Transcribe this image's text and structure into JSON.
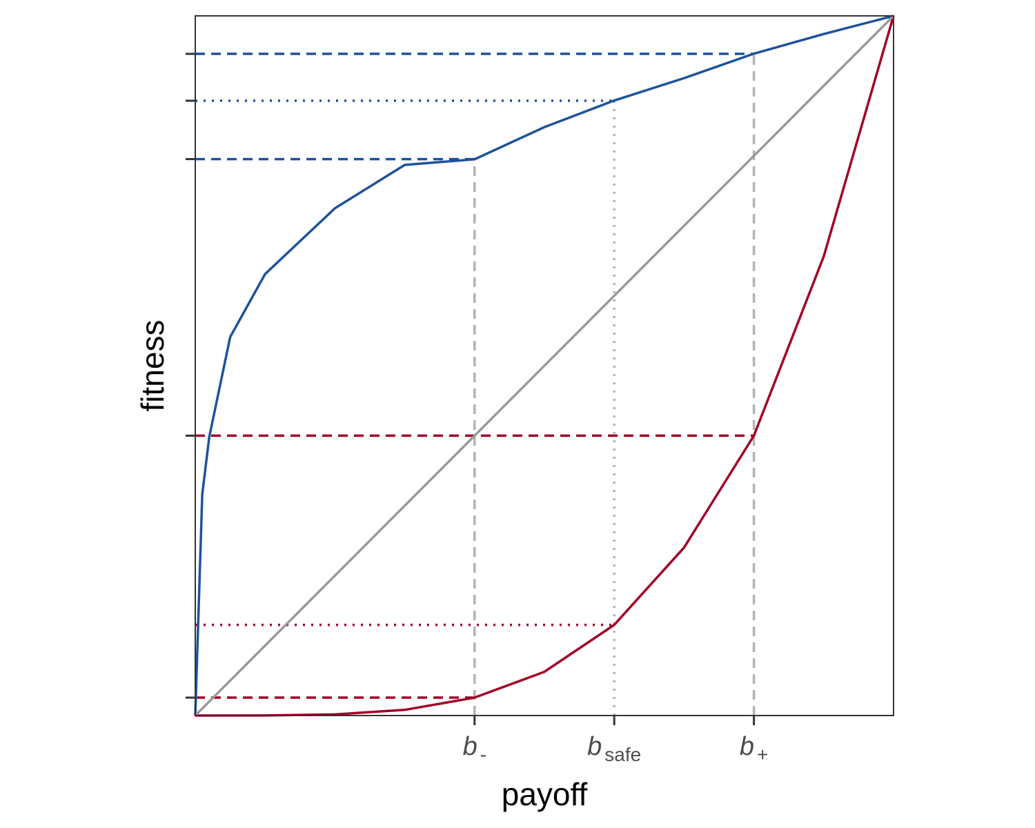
{
  "chart_data": {
    "type": "line",
    "xlabel": "payoff",
    "ylabel": "fitness",
    "xlim": [
      0,
      1
    ],
    "ylim": [
      0,
      1
    ],
    "grid": false,
    "x_ticks": [
      {
        "x": 0.4,
        "main": "b",
        "sub": "-"
      },
      {
        "x": 0.6,
        "main": "b",
        "sub": "safe"
      },
      {
        "x": 0.8,
        "main": "b",
        "sub": "+"
      }
    ],
    "y_ticks": [
      0.0256,
      0.4,
      0.7953,
      0.8787,
      0.9457
    ],
    "series": [
      {
        "x": [
          0,
          0.01,
          0.02,
          0.05,
          0.1,
          0.2,
          0.3,
          0.4,
          0.5,
          0.6,
          0.7,
          0.8,
          0.9,
          1.0
        ],
        "y": [
          0,
          0.316,
          0.398,
          0.541,
          0.631,
          0.725,
          0.787,
          0.795,
          0.841,
          0.879,
          0.911,
          0.946,
          0.974,
          1.0
        ],
        "color": "#1d529b"
      },
      {
        "x": [
          0,
          0.1,
          0.2,
          0.3,
          0.4,
          0.5,
          0.6,
          0.7,
          0.8,
          0.9,
          1.0
        ],
        "y": [
          0,
          0.0001,
          0.0016,
          0.0081,
          0.0256,
          0.0625,
          0.1296,
          0.2401,
          0.4,
          0.6561,
          1.0
        ],
        "color": "#a10026"
      },
      {
        "x": [
          0,
          1
        ],
        "y": [
          0,
          1
        ],
        "color": "#999999"
      }
    ],
    "guides": [
      {
        "axis": "h",
        "y": 0.9457,
        "x_to": 0.8,
        "style": "dashed",
        "color": "#1d529b"
      },
      {
        "axis": "h",
        "y": 0.8787,
        "x_to": 0.6,
        "style": "dotted",
        "color": "#1d529b"
      },
      {
        "axis": "h",
        "y": 0.7953,
        "x_to": 0.4,
        "style": "dashed",
        "color": "#1d529b"
      },
      {
        "axis": "h",
        "y": 0.4,
        "x_to": 0.8,
        "style": "dashed",
        "color": "#a10026"
      },
      {
        "axis": "h",
        "y": 0.1296,
        "x_to": 0.6,
        "style": "dotted",
        "color": "#a10026"
      },
      {
        "axis": "h",
        "y": 0.0256,
        "x_to": 0.4,
        "style": "dashed",
        "color": "#a10026"
      },
      {
        "axis": "v",
        "x": 0.4,
        "y_to": 0.7953,
        "style": "dashed",
        "color": "#b3b3b3"
      },
      {
        "axis": "v",
        "x": 0.6,
        "y_to": 0.8787,
        "style": "dotted",
        "color": "#b3b3b3"
      },
      {
        "axis": "v",
        "x": 0.8,
        "y_to": 0.9457,
        "style": "dashed",
        "color": "#b3b3b3"
      }
    ]
  }
}
